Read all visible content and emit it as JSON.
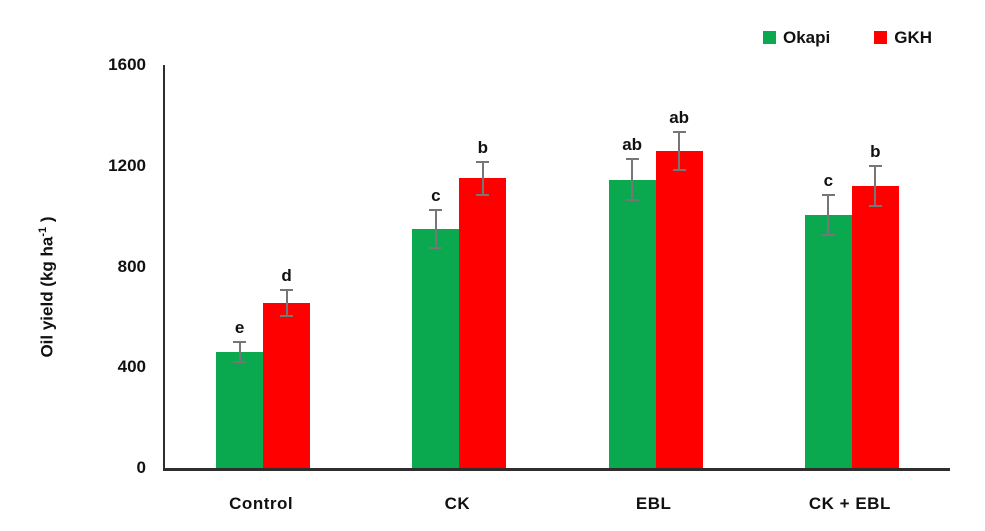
{
  "chart_data": {
    "type": "bar",
    "title": "",
    "categories": [
      "Control",
      "CK",
      "EBL",
      "CK + EBL"
    ],
    "series": [
      {
        "name": "Okapi",
        "color": "#0aa84f",
        "values": [
          460,
          950,
          1145,
          1005
        ],
        "errors": [
          40,
          75,
          80,
          80
        ],
        "letters": [
          "e",
          "c",
          "ab",
          "c"
        ]
      },
      {
        "name": "GKH",
        "color": "#fe0000",
        "values": [
          655,
          1150,
          1260,
          1120
        ],
        "errors": [
          50,
          65,
          75,
          80
        ],
        "letters": [
          "d",
          "b",
          "ab",
          "b"
        ]
      }
    ],
    "xlabel": "",
    "ylabel": "Oil yield (kg ha⁻¹)",
    "yticks": [
      0,
      400,
      800,
      1200,
      1600
    ],
    "ylim": [
      0,
      1600
    ],
    "grid": false,
    "legend_position": "top-right",
    "error_bar_color": "#767676",
    "axis_color": "#2e2e2e"
  },
  "axes": {
    "ylabel_main": "Oil yield (kg ha",
    "ylabel_sup": "-1",
    "ylabel_close": " )"
  }
}
